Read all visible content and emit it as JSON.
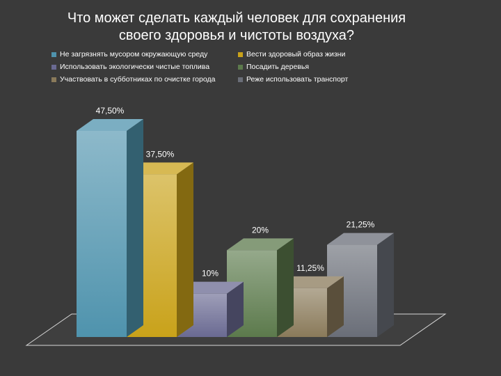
{
  "title_line1": "Что может сделать каждый человек для сохранения",
  "title_line2": "своего здоровья и чистоты воздуха?",
  "chart_data": {
    "type": "bar",
    "title": "Что может сделать каждый человек для сохранения своего здоровья и чистоты воздуха?",
    "categories": [
      "Не загрязнять мусором окружающую среду",
      "Вести здоровый образ жизни",
      "Использовать экологически чистые топлива",
      "Посадить деревья",
      "Участвовать в субботниках по очистке города",
      "Реже использовать транспорт"
    ],
    "values": [
      47.5,
      37.5,
      10,
      20,
      11.25,
      21.25
    ],
    "value_labels": [
      "47,50%",
      "37,50%",
      "10%",
      "20%",
      "11,25%",
      "21,25%"
    ],
    "colors": [
      "#4f93ad",
      "#c9a21a",
      "#6a6a92",
      "#5c7a4c",
      "#8a7a5a",
      "#6a6e78"
    ],
    "ylim": [
      0,
      50
    ],
    "grid": false,
    "legend": "top",
    "style": "3d-columns"
  }
}
